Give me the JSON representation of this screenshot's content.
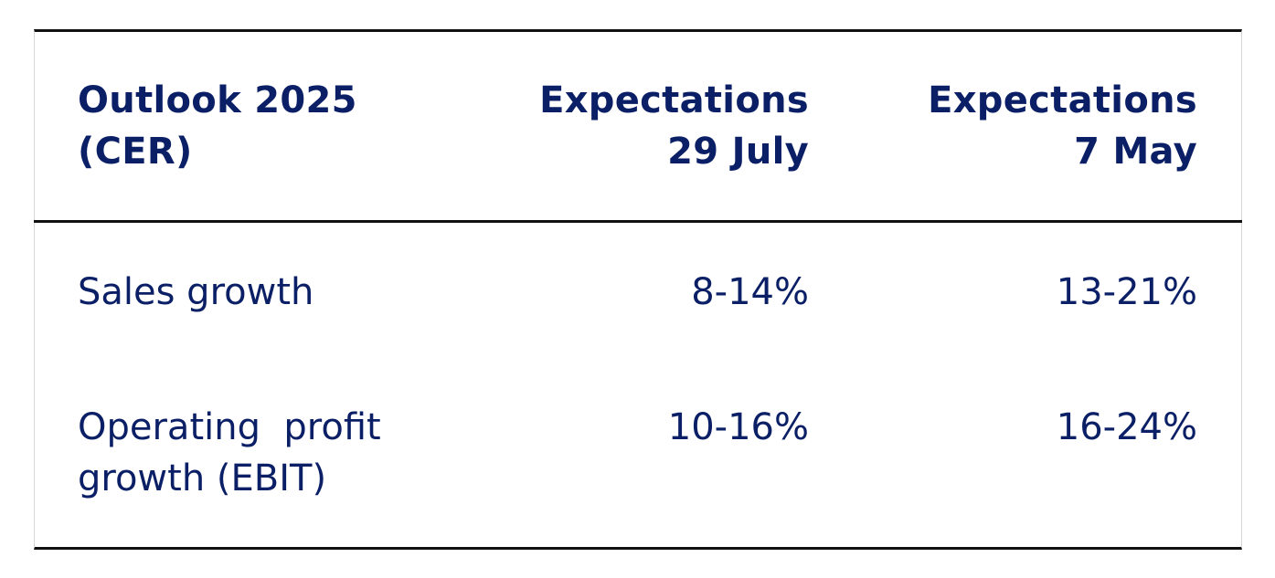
{
  "table": {
    "header": {
      "col1": [
        "Outlook 2025",
        "(CER)"
      ],
      "col2": [
        "Expectations",
        "29 July"
      ],
      "col3": [
        "Expectations",
        "7 May"
      ]
    },
    "rows": [
      {
        "label": [
          "Sales growth"
        ],
        "july": "8-14%",
        "may": "13-21%"
      },
      {
        "label": [
          "Operating  profit",
          "growth (EBIT)"
        ],
        "july": "10-16%",
        "may": "16-24%"
      }
    ]
  },
  "colors": {
    "text": "#0b1f66",
    "rule": "#111111",
    "side_border": "#d6d6d6"
  }
}
